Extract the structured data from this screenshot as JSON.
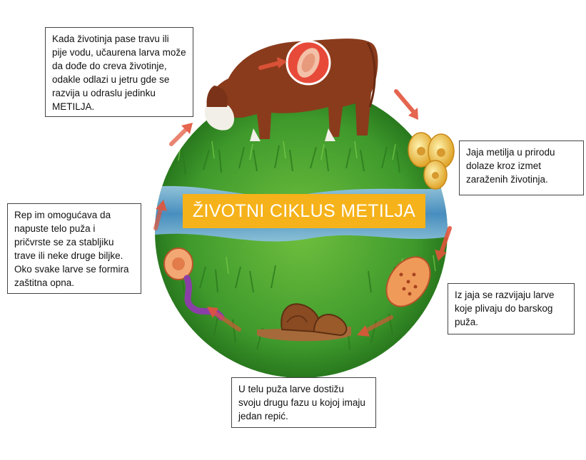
{
  "title": "ŽIVOTNI CIKLUS METILJA",
  "stages": {
    "cow": "Kada životinja pase travu ili pije vodu, učaurena larva može da dođe do creva životinje, odakle odlazi u jetru gde se razvija u odraslu jedinku METILJA.",
    "eggs": "Jaja metilja u prirodu dolaze kroz izmet zaraženih životinja.",
    "larvae": "Iz jaja se razvijaju larve koje plivaju do barskog puža.",
    "snail": "U telu puža larve dostižu svoju drugu fazu u kojoj imaju jedan repić.",
    "cyst": "Rep im omogućava da napuste telo puža i pričvrste se za stabljiku trave ili neke druge biljke. Oko svake larve se formira zaštitna opna."
  },
  "colors": {
    "grass": "#3f9a2c",
    "water": "#4a8fd0",
    "banner": "#f6b21a",
    "arrow": "#e2543a"
  }
}
